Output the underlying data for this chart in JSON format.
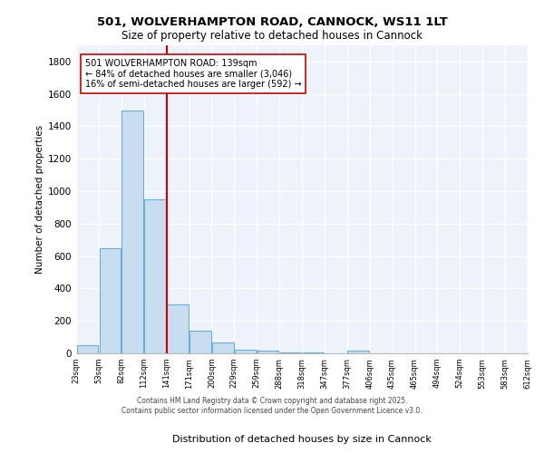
{
  "title_line1": "501, WOLVERHAMPTON ROAD, CANNOCK, WS11 1LT",
  "title_line2": "Size of property relative to detached houses in Cannock",
  "xlabel": "Distribution of detached houses by size in Cannock",
  "ylabel": "Number of detached properties",
  "bar_values": [
    50,
    650,
    1500,
    950,
    300,
    140,
    65,
    25,
    15,
    5,
    5,
    0,
    15,
    0,
    0,
    0,
    0,
    0,
    0,
    0
  ],
  "bin_labels": [
    "23sqm",
    "53sqm",
    "82sqm",
    "112sqm",
    "141sqm",
    "171sqm",
    "200sqm",
    "229sqm",
    "259sqm",
    "288sqm",
    "318sqm",
    "347sqm",
    "377sqm",
    "406sqm",
    "435sqm",
    "465sqm",
    "494sqm",
    "524sqm",
    "553sqm",
    "583sqm",
    "612sqm"
  ],
  "bar_color": "#c8ddef",
  "bar_edge_color": "#6aaed6",
  "bg_color": "#eef2fb",
  "grid_color": "#ffffff",
  "vline_color": "#cc0000",
  "annotation_text": "501 WOLVERHAMPTON ROAD: 139sqm\n← 84% of detached houses are smaller (3,046)\n16% of semi-detached houses are larger (592) →",
  "annotation_box_color": "#ffffff",
  "annotation_box_edge": "#cc0000",
  "footnote": "Contains HM Land Registry data © Crown copyright and database right 2025.\nContains public sector information licensed under the Open Government Licence v3.0.",
  "ylim": [
    0,
    1900
  ],
  "yticks": [
    0,
    200,
    400,
    600,
    800,
    1000,
    1200,
    1400,
    1600,
    1800
  ]
}
